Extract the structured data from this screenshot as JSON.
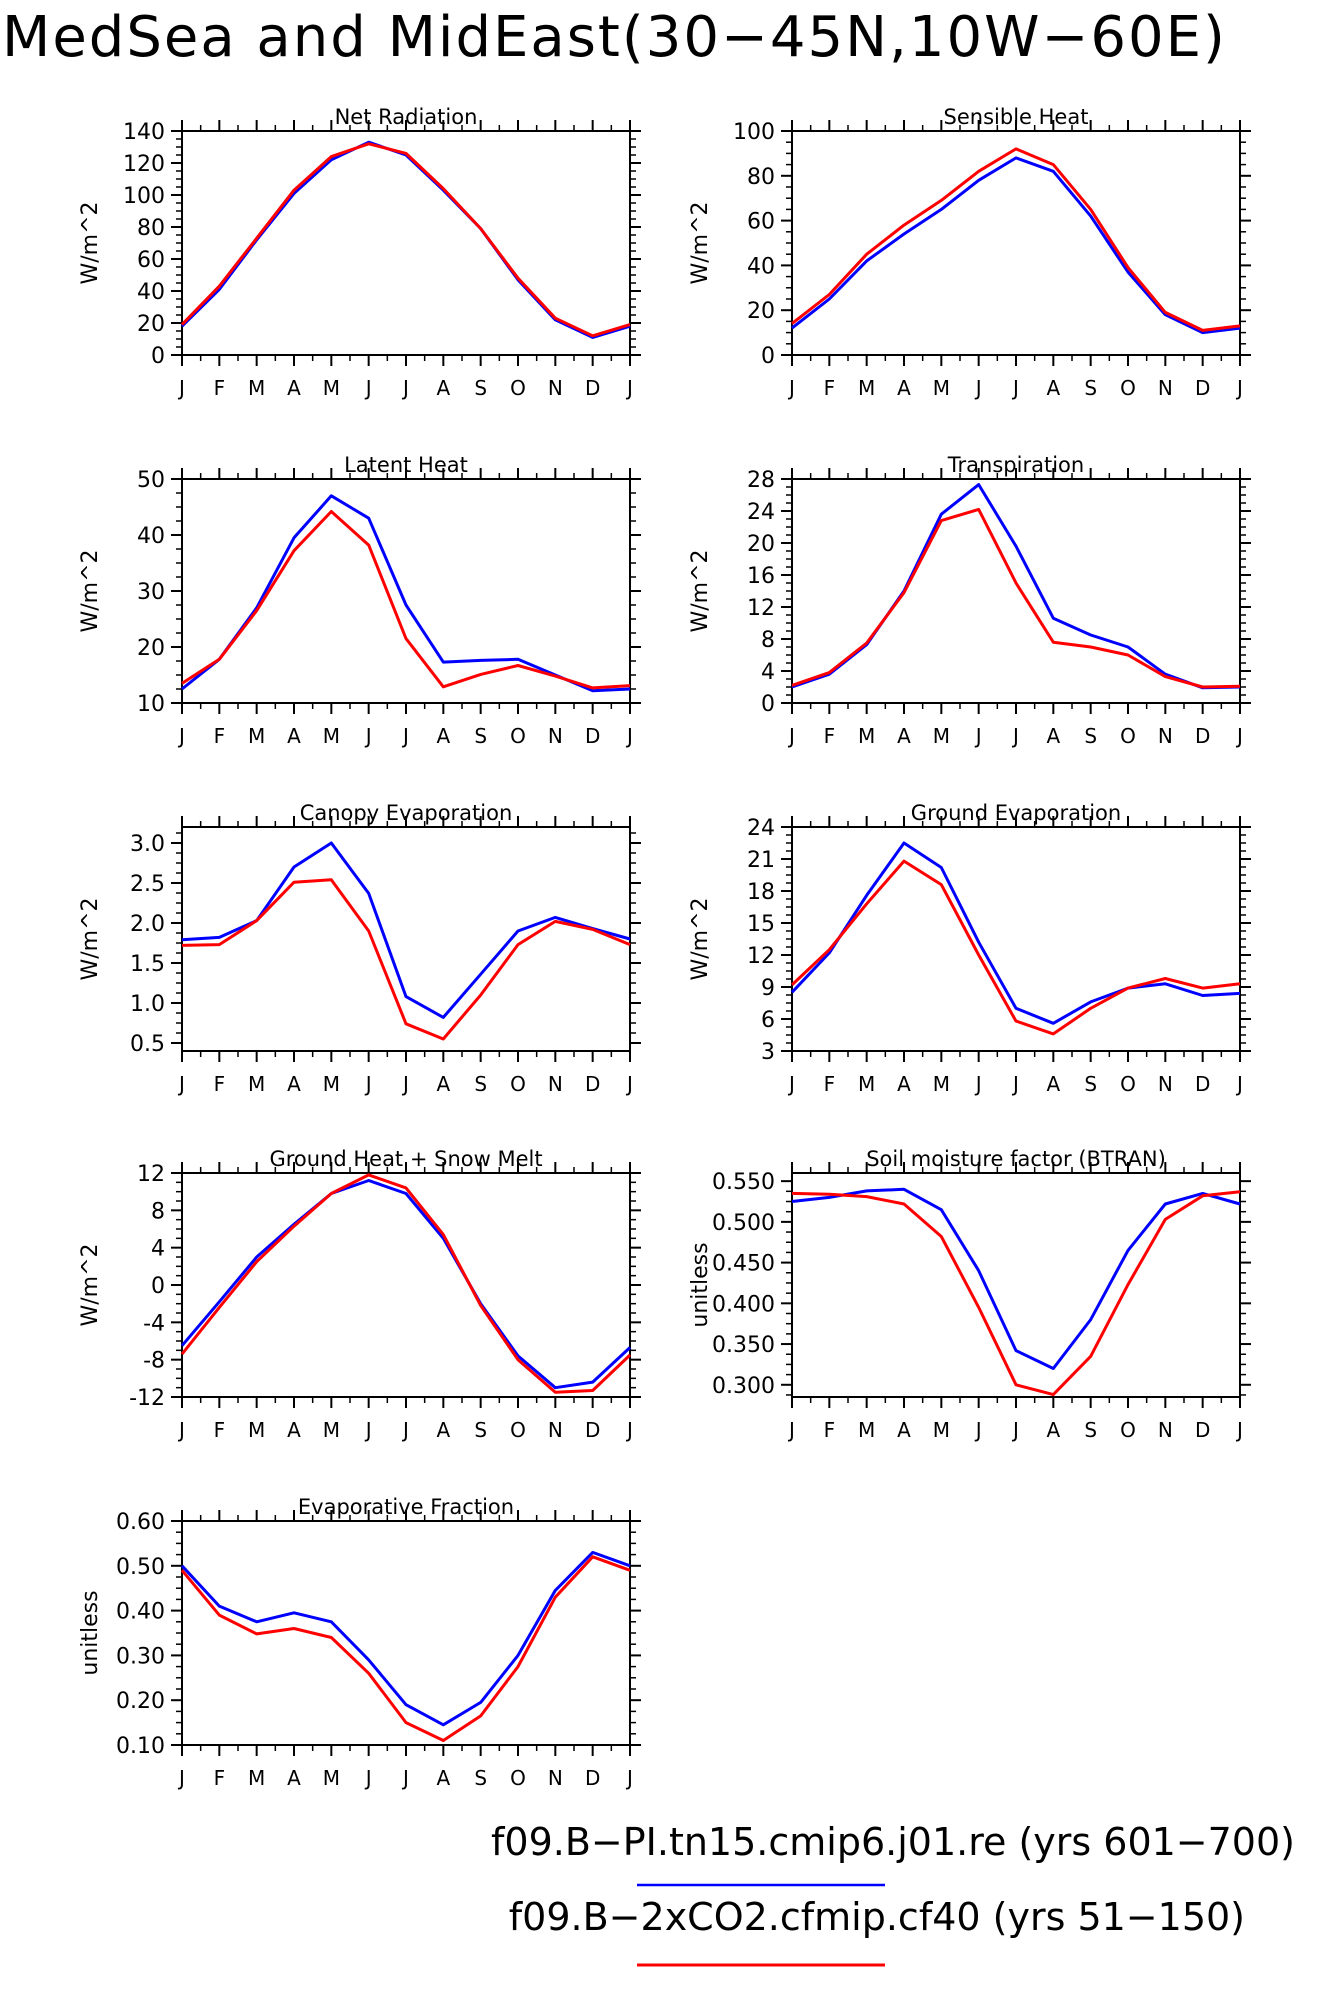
{
  "figure": {
    "title": "MedSea and MidEast(30−45N,10W−60E)",
    "months": [
      "J",
      "F",
      "M",
      "A",
      "M",
      "J",
      "J",
      "A",
      "S",
      "O",
      "N",
      "D",
      "J"
    ]
  },
  "legend": [
    {
      "label": "f09.B−PI.tn15.cmip6.j01.re (yrs 601−700)",
      "color": "#0000ff"
    },
    {
      "label": "f09.B−2xCO2.cfmip.cf40 (yrs 51−150)",
      "color": "#ff0000"
    }
  ],
  "colors": {
    "blue": "#0000ff",
    "red": "#ff0000"
  },
  "chart_data": [
    {
      "type": "line",
      "title": "Net Radiation",
      "ylabel": "W/m^2",
      "ylim": [
        0,
        140
      ],
      "yticks": [
        "0",
        "20",
        "40",
        "60",
        "80",
        "100",
        "120",
        "140"
      ],
      "series": [
        {
          "values": [
            18,
            41,
            72,
            101,
            122,
            133,
            125,
            103,
            79,
            47,
            22,
            11,
            18
          ]
        },
        {
          "values": [
            19,
            43,
            73,
            103,
            124,
            132,
            126,
            104,
            79,
            48,
            23,
            12,
            19
          ]
        }
      ]
    },
    {
      "type": "line",
      "title": "Sensible Heat",
      "ylabel": "W/m^2",
      "ylim": [
        0,
        100
      ],
      "yticks": [
        "0",
        "20",
        "40",
        "60",
        "80",
        "100"
      ],
      "series": [
        {
          "values": [
            12,
            25,
            42,
            54,
            65,
            78,
            88,
            82,
            62,
            37,
            18,
            10,
            12
          ]
        },
        {
          "values": [
            14,
            27,
            45,
            58,
            69,
            82,
            92,
            85,
            65,
            39,
            19,
            11,
            13
          ]
        }
      ]
    },
    {
      "type": "line",
      "title": "Latent Heat",
      "ylabel": "W/m^2",
      "ylim": [
        10,
        50
      ],
      "yticks": [
        "10",
        "20",
        "30",
        "40",
        "50"
      ],
      "series": [
        {
          "values": [
            12.5,
            17.8,
            27,
            39.5,
            47,
            43,
            27.5,
            17.3,
            17.6,
            17.8,
            15,
            12.2,
            12.5
          ]
        },
        {
          "values": [
            13.5,
            17.8,
            26.5,
            37.2,
            44.2,
            38.2,
            21.5,
            12.9,
            15.1,
            16.7,
            14.8,
            12.7,
            13.1
          ]
        }
      ]
    },
    {
      "type": "line",
      "title": "Transpiration",
      "ylabel": "W/m^2",
      "ylim": [
        0,
        28
      ],
      "yticks": [
        "0",
        "4",
        "8",
        "12",
        "16",
        "20",
        "24",
        "28"
      ],
      "series": [
        {
          "values": [
            2.0,
            3.6,
            7.3,
            14.0,
            23.6,
            27.3,
            19.6,
            10.6,
            8.5,
            7.0,
            3.6,
            1.9,
            2.0
          ]
        },
        {
          "values": [
            2.2,
            3.8,
            7.5,
            13.8,
            22.8,
            24.2,
            15.0,
            7.6,
            7.0,
            6.0,
            3.3,
            2.0,
            2.1
          ]
        }
      ]
    },
    {
      "type": "line",
      "title": "Canopy Evaporation",
      "ylabel": "W/m^2",
      "ylim": [
        0.4,
        3.2
      ],
      "yticks": [
        "0.5",
        "1.0",
        "1.5",
        "2.0",
        "2.5",
        "3.0"
      ],
      "ytick_values": [
        0.5,
        1.0,
        1.5,
        2.0,
        2.5,
        3.0
      ],
      "series": [
        {
          "values": [
            1.79,
            1.82,
            2.03,
            2.7,
            3.0,
            2.37,
            1.08,
            0.82,
            1.36,
            1.9,
            2.07,
            1.93,
            1.8
          ]
        },
        {
          "values": [
            1.72,
            1.73,
            2.03,
            2.51,
            2.54,
            1.9,
            0.74,
            0.55,
            1.1,
            1.73,
            2.02,
            1.92,
            1.73
          ]
        }
      ]
    },
    {
      "type": "line",
      "title": "Ground Evaporation",
      "ylabel": "W/m^2",
      "ylim": [
        3,
        24
      ],
      "yticks": [
        "3",
        "6",
        "9",
        "12",
        "15",
        "18",
        "21",
        "24"
      ],
      "series": [
        {
          "values": [
            8.5,
            12.2,
            17.6,
            22.5,
            20.2,
            13.2,
            7.0,
            5.6,
            7.6,
            8.9,
            9.3,
            8.2,
            8.4
          ]
        },
        {
          "values": [
            9.2,
            12.5,
            16.8,
            20.8,
            18.6,
            12.0,
            5.8,
            4.6,
            7.0,
            8.9,
            9.8,
            8.9,
            9.3
          ]
        }
      ]
    },
    {
      "type": "line",
      "title": "Ground Heat + Snow Melt",
      "ylabel": "W/m^2",
      "ylim": [
        -12,
        12
      ],
      "yticks": [
        "-12",
        "-8",
        "-4",
        "0",
        "4",
        "8",
        "12"
      ],
      "series": [
        {
          "values": [
            -6.5,
            -1.8,
            3.0,
            6.5,
            9.8,
            11.2,
            9.8,
            5.0,
            -2.0,
            -7.6,
            -11.0,
            -10.4,
            -6.7
          ]
        },
        {
          "values": [
            -7.4,
            -2.4,
            2.5,
            6.3,
            9.8,
            11.8,
            10.4,
            5.4,
            -2.2,
            -8.0,
            -11.5,
            -11.3,
            -7.5
          ]
        }
      ]
    },
    {
      "type": "line",
      "title": "Soil moisture factor (BTRAN)",
      "ylabel": "unitless",
      "ylim": [
        0.285,
        0.56
      ],
      "yticks": [
        "0.300",
        "0.350",
        "0.400",
        "0.450",
        "0.500",
        "0.550"
      ],
      "ytick_values": [
        0.3,
        0.35,
        0.4,
        0.45,
        0.5,
        0.55
      ],
      "series": [
        {
          "values": [
            0.525,
            0.53,
            0.538,
            0.54,
            0.515,
            0.44,
            0.342,
            0.32,
            0.38,
            0.465,
            0.522,
            0.535,
            0.522
          ]
        },
        {
          "values": [
            0.535,
            0.534,
            0.531,
            0.522,
            0.482,
            0.395,
            0.3,
            0.288,
            0.335,
            0.423,
            0.503,
            0.532,
            0.537
          ]
        }
      ]
    },
    {
      "type": "line",
      "title": "Evaporative Fraction",
      "ylabel": "unitless",
      "ylim": [
        0.1,
        0.6
      ],
      "yticks": [
        "0.10",
        "0.20",
        "0.30",
        "0.40",
        "0.50",
        "0.60"
      ],
      "ytick_values": [
        0.1,
        0.2,
        0.3,
        0.4,
        0.5,
        0.6
      ],
      "series": [
        {
          "values": [
            0.5,
            0.41,
            0.375,
            0.395,
            0.375,
            0.29,
            0.19,
            0.145,
            0.195,
            0.3,
            0.445,
            0.53,
            0.5
          ]
        },
        {
          "values": [
            0.49,
            0.39,
            0.348,
            0.36,
            0.34,
            0.26,
            0.15,
            0.11,
            0.165,
            0.275,
            0.43,
            0.52,
            0.49
          ]
        }
      ]
    }
  ]
}
